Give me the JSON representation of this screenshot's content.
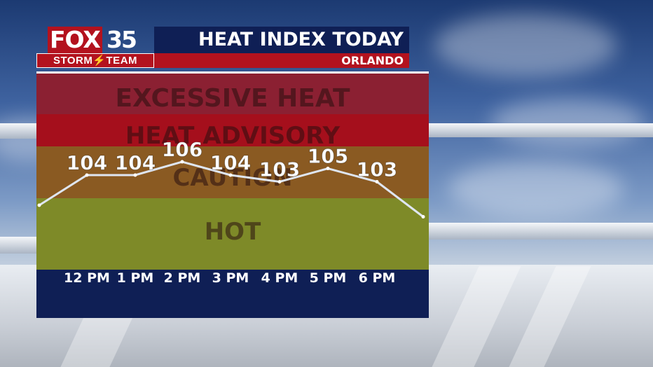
{
  "brand": {
    "fox": "FOX",
    "channel": "35",
    "team": "STORM⚡TEAM"
  },
  "title": "HEAT INDEX TODAY",
  "location": "ORLANDO",
  "colors": {
    "navy": "#0f1f55",
    "red": "#b3121e",
    "excessive_heat": "#8b2032",
    "heat_advisory": "#a50f1c",
    "caution": "#8a5a22",
    "hot": "#7e8a28",
    "line": "#ffffff"
  },
  "chart_data": {
    "type": "line",
    "title": "HEAT INDEX TODAY",
    "x": [
      "12 PM",
      "1 PM",
      "2 PM",
      "3 PM",
      "4 PM",
      "5 PM",
      "6 PM"
    ],
    "series": [
      {
        "values": [
          104,
          104,
          106,
          104,
          103,
          105,
          103
        ]
      }
    ],
    "trend_line_ends": {
      "start": 100,
      "end": 99
    },
    "ylim": [
      90,
      120
    ],
    "grid": false,
    "categories_bands": [
      {
        "label": "EXCESSIVE HEAT",
        "from": 112,
        "to": 120
      },
      {
        "label": "HEAT ADVISORY",
        "from": 108,
        "to": 112
      },
      {
        "label": "CAUTION",
        "from": 99,
        "to": 108
      },
      {
        "label": "HOT",
        "from": 90,
        "to": 99
      }
    ]
  }
}
